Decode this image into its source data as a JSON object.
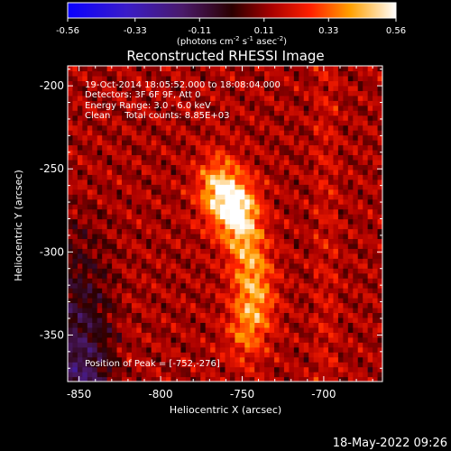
{
  "colorbar": {
    "tick_labels": [
      "-0.56",
      "-0.33",
      "-0.11",
      "0.11",
      "0.33",
      "0.56"
    ],
    "tick_values": [
      -0.56,
      -0.33,
      -0.11,
      0.11,
      0.33,
      0.56
    ],
    "range": [
      -0.56,
      0.56
    ],
    "unit_main": "(photons cm",
    "unit_sup1": "-2",
    "unit_mid1": " s",
    "unit_sup2": "-1",
    "unit_mid2": " asec",
    "unit_sup3": "-2",
    "unit_end": ")"
  },
  "plot": {
    "title": "Reconstructed RHESSI Image",
    "info_lines": [
      "19-Oct-2014 18:05:52.000 to 18:08:04.000",
      "Detectors: 3F 6F 9F, Att 0",
      "Energy Range: 3.0 - 6.0 keV",
      "Clean     Total counts: 8.85E+03"
    ],
    "peak_label": "Position of Peak = [-752,-276]",
    "xlabel": "Heliocentric X (arcsec)",
    "ylabel": "Heliocentric Y (arcsec)",
    "xticks": [
      {
        "v": -850,
        "label": "-850"
      },
      {
        "v": -800,
        "label": "-800"
      },
      {
        "v": -750,
        "label": "-750"
      },
      {
        "v": -700,
        "label": "-700"
      }
    ],
    "yticks": [
      {
        "v": -200,
        "label": "-200"
      },
      {
        "v": -250,
        "label": "-250"
      },
      {
        "v": -300,
        "label": "-300"
      },
      {
        "v": -350,
        "label": "-350"
      }
    ]
  },
  "chart_data": {
    "type": "heatmap",
    "title": "Reconstructed RHESSI Image",
    "xlabel": "Heliocentric X (arcsec)",
    "ylabel": "Heliocentric Y (arcsec)",
    "xlim": [
      -857,
      -664
    ],
    "ylim": [
      -378,
      -188
    ],
    "peak_position": [
      -752,
      -276
    ],
    "colorbar_range": [
      -0.56,
      0.56
    ],
    "colormap": "hot (blue-purple negative, red-yellow-white positive)",
    "sources": [
      {
        "x": -752,
        "y": -276,
        "value": 0.56
      },
      {
        "x": -765,
        "y": -262,
        "value": 0.45
      },
      {
        "x": -745,
        "y": -305,
        "value": 0.3
      },
      {
        "x": -742,
        "y": -330,
        "value": 0.3
      },
      {
        "x": -748,
        "y": -350,
        "value": 0.22
      }
    ]
  },
  "timestamp": "18-May-2022 09:26"
}
